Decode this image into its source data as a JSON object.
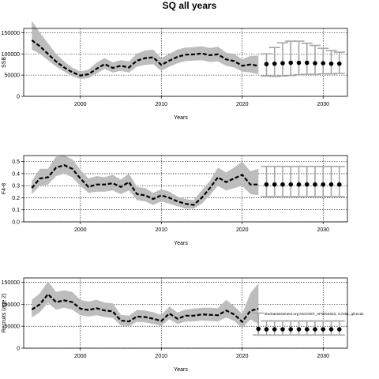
{
  "title": "SQ all years",
  "chart_data": [
    {
      "type": "line",
      "xlabel": "Years",
      "ylabel": "SSB",
      "xlim": [
        1993,
        2033
      ],
      "ylim": [
        0,
        160000
      ],
      "xticks": [
        2000,
        2010,
        2020,
        2030
      ],
      "yticks": [
        0,
        50000,
        100000,
        150000
      ],
      "grid": true,
      "history": {
        "x": [
          1994,
          1995,
          1996,
          1997,
          1998,
          1999,
          2000,
          2001,
          2002,
          2003,
          2004,
          2005,
          2006,
          2007,
          2008,
          2009,
          2010,
          2011,
          2012,
          2013,
          2014,
          2015,
          2016,
          2017,
          2018,
          2019,
          2020,
          2021,
          2022
        ],
        "y": [
          132000,
          118000,
          100000,
          82000,
          68000,
          57000,
          49000,
          52000,
          65000,
          76000,
          67000,
          72000,
          68000,
          84000,
          90000,
          92000,
          74000,
          84000,
          93000,
          98000,
          99000,
          101000,
          97000,
          99000,
          87000,
          83000,
          72000,
          75000,
          72000
        ],
        "lower": [
          110000,
          100000,
          85000,
          70000,
          58000,
          48000,
          41000,
          43000,
          53000,
          65000,
          56000,
          60000,
          56000,
          70000,
          74000,
          76000,
          60000,
          70000,
          78000,
          83000,
          84000,
          85000,
          81000,
          82000,
          72000,
          68000,
          58000,
          56000,
          52000
        ],
        "upper": [
          178000,
          150000,
          125000,
          100000,
          82000,
          68000,
          58000,
          63000,
          79000,
          90000,
          80000,
          85000,
          82000,
          101000,
          108000,
          110000,
          90000,
          100000,
          110000,
          115000,
          116000,
          118000,
          114000,
          117000,
          103000,
          100000,
          87000,
          95000,
          96000
        ]
      },
      "projection": {
        "x": [
          2023,
          2024,
          2025,
          2026,
          2027,
          2028,
          2029,
          2030,
          2031,
          2032
        ],
        "y": [
          76000,
          77000,
          78000,
          79000,
          79000,
          79000,
          78000,
          78000,
          77000,
          77000
        ],
        "lower": [
          48000,
          47000,
          48000,
          49000,
          51000,
          52000,
          52000,
          53000,
          53000,
          54000
        ],
        "upper": [
          100000,
          115000,
          126000,
          130000,
          130000,
          125000,
          120000,
          113000,
          108000,
          104000
        ]
      }
    },
    {
      "type": "line",
      "xlabel": "Years",
      "ylabel": "F4-8",
      "xlim": [
        1993,
        2033
      ],
      "ylim": [
        0,
        0.55
      ],
      "xticks": [
        2000,
        2010,
        2020,
        2030
      ],
      "yticks": [
        0.0,
        0.1,
        0.2,
        0.3,
        0.4,
        0.5
      ],
      "grid": true,
      "history": {
        "x": [
          1994,
          1995,
          1996,
          1997,
          1998,
          1999,
          2000,
          2001,
          2002,
          2003,
          2004,
          2005,
          2006,
          2007,
          2008,
          2009,
          2010,
          2011,
          2012,
          2013,
          2014,
          2015,
          2016,
          2017,
          2018,
          2019,
          2020,
          2021,
          2022
        ],
        "y": [
          0.28,
          0.36,
          0.37,
          0.45,
          0.47,
          0.44,
          0.36,
          0.29,
          0.31,
          0.31,
          0.32,
          0.29,
          0.33,
          0.23,
          0.22,
          0.19,
          0.22,
          0.2,
          0.17,
          0.15,
          0.14,
          0.2,
          0.28,
          0.37,
          0.33,
          0.36,
          0.39,
          0.31,
          0.31
        ],
        "lower": [
          0.23,
          0.3,
          0.31,
          0.38,
          0.4,
          0.37,
          0.3,
          0.24,
          0.25,
          0.25,
          0.26,
          0.23,
          0.26,
          0.18,
          0.17,
          0.14,
          0.17,
          0.15,
          0.13,
          0.11,
          0.11,
          0.15,
          0.22,
          0.3,
          0.26,
          0.28,
          0.3,
          0.23,
          0.22
        ],
        "upper": [
          0.34,
          0.44,
          0.44,
          0.54,
          0.55,
          0.52,
          0.43,
          0.36,
          0.38,
          0.37,
          0.39,
          0.35,
          0.4,
          0.29,
          0.28,
          0.24,
          0.27,
          0.25,
          0.21,
          0.19,
          0.18,
          0.26,
          0.34,
          0.45,
          0.41,
          0.45,
          0.5,
          0.42,
          0.44
        ]
      },
      "projection": {
        "x": [
          2023,
          2024,
          2025,
          2026,
          2027,
          2028,
          2029,
          2030,
          2031,
          2032
        ],
        "y": [
          0.31,
          0.31,
          0.31,
          0.31,
          0.31,
          0.31,
          0.31,
          0.31,
          0.31,
          0.31
        ],
        "lower": [
          0.21,
          0.21,
          0.21,
          0.21,
          0.21,
          0.21,
          0.21,
          0.21,
          0.21,
          0.21
        ],
        "upper": [
          0.46,
          0.46,
          0.46,
          0.46,
          0.46,
          0.46,
          0.46,
          0.46,
          0.46,
          0.46
        ]
      }
    },
    {
      "type": "line",
      "xlabel": "Years",
      "ylabel": "Recruits (age 2)",
      "xlim": [
        1993,
        2033
      ],
      "ylim": [
        0,
        160000
      ],
      "xticks": [
        2000,
        2010,
        2020,
        2030
      ],
      "yticks": [
        0,
        50000,
        100000,
        150000
      ],
      "grid": true,
      "annotation": "stockassessment.org NCCNST_AFWG2023, r17261, git:ec2e",
      "history": {
        "x": [
          1994,
          1995,
          1996,
          1997,
          1998,
          1999,
          2000,
          2001,
          2002,
          2003,
          2004,
          2005,
          2006,
          2007,
          2008,
          2009,
          2010,
          2011,
          2012,
          2013,
          2014,
          2015,
          2016,
          2017,
          2018,
          2019,
          2020,
          2021,
          2022
        ],
        "y": [
          88000,
          100000,
          123000,
          105000,
          109000,
          105000,
          90000,
          87000,
          91000,
          86000,
          84000,
          63000,
          61000,
          72000,
          71000,
          67000,
          62000,
          79000,
          67000,
          74000,
          74000,
          77000,
          76000,
          75000,
          86000,
          77000,
          60000,
          85000,
          90000
        ],
        "lower": [
          70000,
          82000,
          103000,
          88000,
          92000,
          88000,
          75000,
          72000,
          75000,
          71000,
          69000,
          52000,
          50000,
          60000,
          59000,
          55000,
          51000,
          66000,
          55000,
          61000,
          61000,
          63000,
          62000,
          61000,
          70000,
          62000,
          46000,
          65000,
          55000
        ],
        "upper": [
          110000,
          125000,
          152000,
          128000,
          132000,
          128000,
          110000,
          106000,
          110000,
          104000,
          102000,
          76000,
          74000,
          87000,
          86000,
          82000,
          76000,
          95000,
          81000,
          88000,
          90000,
          92000,
          92000,
          91000,
          110000,
          96000,
          78000,
          125000,
          148000
        ]
      },
      "projection": {
        "x": [
          2022,
          2023,
          2024,
          2025,
          2026,
          2027,
          2028,
          2029,
          2030,
          2031,
          2032
        ],
        "y": [
          44000,
          43000,
          43000,
          43000,
          43000,
          43000,
          43000,
          43000,
          43000,
          43000,
          43000
        ],
        "lower": [
          30000,
          30000,
          30000,
          30000,
          30000,
          30000,
          30000,
          30000,
          30000,
          30000,
          30000
        ],
        "upper": [
          80000,
          62000,
          62000,
          62000,
          62000,
          62000,
          62000,
          62000,
          62000,
          62000,
          62000
        ]
      }
    }
  ]
}
